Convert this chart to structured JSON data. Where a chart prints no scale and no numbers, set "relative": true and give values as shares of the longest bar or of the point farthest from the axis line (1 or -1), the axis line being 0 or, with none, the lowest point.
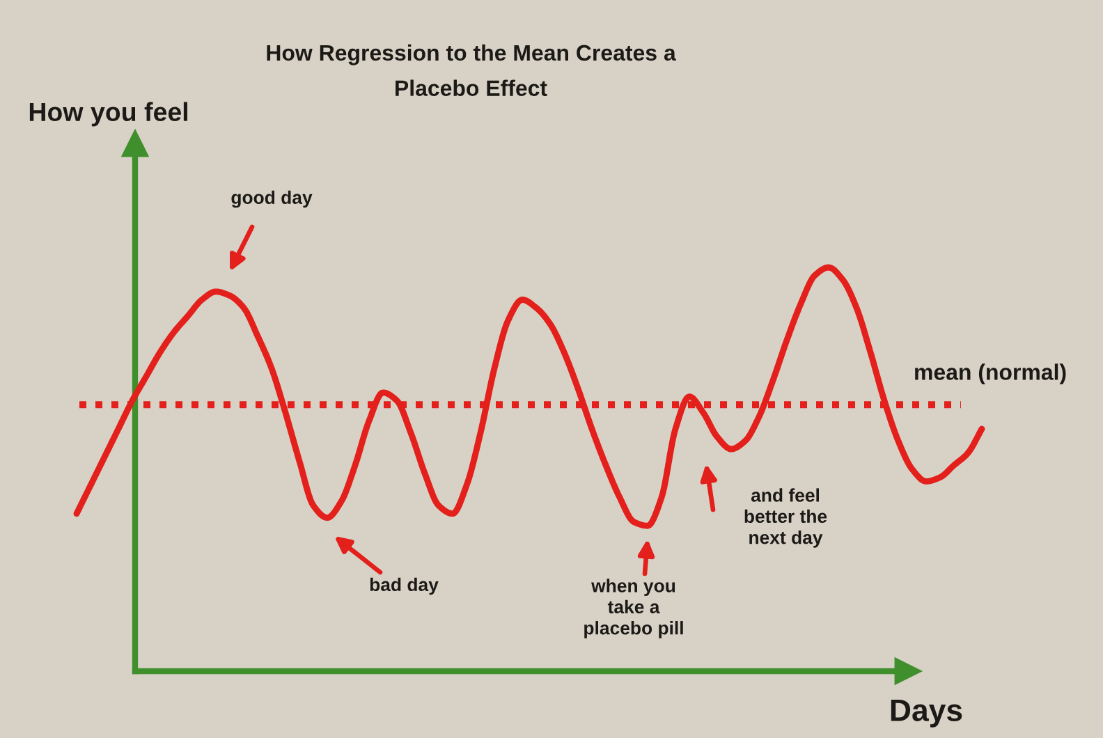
{
  "chart_data": {
    "type": "line",
    "title": "How Regression to the Mean Creates a\nPlacebo Effect",
    "xlabel": "Days",
    "relative": true,
    "line_style": "solid",
    "color": "#e3201b",
    "categories": [
      null,
      null,
      null,
      null,
      null,
      null,
      null,
      null,
      null,
      null,
      null,
      null,
      null,
      null,
      null,
      null,
      null,
      null,
      null,
      null,
      null,
      null,
      null,
      null,
      null,
      null,
      null,
      null,
      null,
      null,
      null,
      null,
      null,
      null,
      null,
      null,
      null,
      null,
      null,
      null,
      null,
      null,
      null,
      null,
      null,
      null,
      null,
      null,
      null,
      null,
      null,
      null,
      null,
      null,
      null,
      null,
      null,
      null,
      null,
      null,
      null,
      null,
      null,
      null,
      null,
      null
    ],
    "values": [
      0.39,
      0.46,
      0.53,
      0.6,
      0.67,
      0.73,
      0.79,
      0.84,
      0.88,
      0.92,
      0.94,
      0.93,
      0.9,
      0.83,
      0.75,
      0.64,
      0.52,
      0.41,
      0.38,
      0.42,
      0.51,
      0.62,
      0.69,
      0.67,
      0.59,
      0.49,
      0.41,
      0.39,
      0.46,
      0.59,
      0.75,
      0.87,
      0.92,
      0.9,
      0.86,
      0.79,
      0.7,
      0.6,
      0.51,
      0.43,
      0.37,
      0.36,
      0.43,
      0.6,
      0.68,
      0.64,
      0.58,
      0.55,
      0.57,
      0.63,
      0.72,
      0.82,
      0.91,
      0.98,
      1.0,
      0.97,
      0.9,
      0.79,
      0.67,
      0.57,
      0.5,
      0.47,
      0.48,
      0.51,
      0.54,
      0.6
    ],
    "ref_lines": [
      {
        "axis": "y",
        "value": 0.66,
        "label": "mean (normal)",
        "color": "#e3201b",
        "line_style": "dotted"
      }
    ],
    "annotations": [
      "How you feel",
      "good day",
      "bad day",
      "when you\ntake a\nplacebo pill",
      "and feel\nbetter the\nnext day"
    ]
  }
}
